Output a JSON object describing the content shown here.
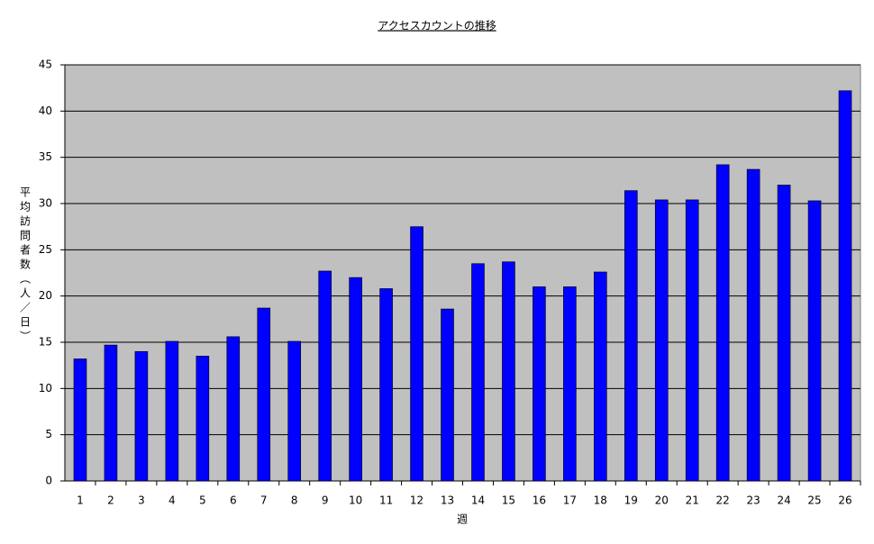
{
  "chart_data": {
    "type": "bar",
    "title": "アクセスカウントの推移",
    "x_label": "週",
    "y_label": "平均訪問者数（人／日）",
    "categories": [
      "1",
      "2",
      "3",
      "4",
      "5",
      "6",
      "7",
      "8",
      "9",
      "10",
      "11",
      "12",
      "13",
      "14",
      "15",
      "16",
      "17",
      "18",
      "19",
      "20",
      "21",
      "22",
      "23",
      "24",
      "25",
      "26"
    ],
    "values": [
      13.2,
      14.7,
      14.0,
      15.1,
      13.5,
      15.6,
      18.7,
      15.1,
      22.7,
      22.0,
      20.8,
      27.5,
      18.6,
      23.5,
      23.7,
      21.0,
      21.0,
      22.6,
      31.4,
      30.4,
      30.4,
      34.2,
      33.7,
      32.0,
      30.3,
      42.2
    ],
    "color": "#0000ff",
    "ylim": [
      0,
      45
    ],
    "yticks": [
      0,
      5,
      10,
      15,
      20,
      25,
      30,
      35,
      40,
      45
    ],
    "grid": true
  }
}
